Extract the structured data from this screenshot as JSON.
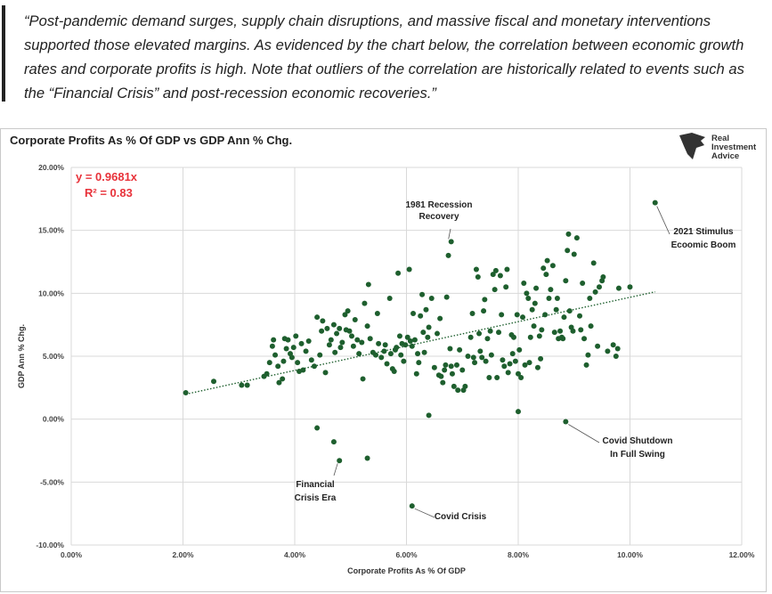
{
  "quote": "“Post-pandemic demand surges, supply chain disruptions, and massive fiscal and monetary interventions supported those elevated margins. As evidenced by the chart below, the correlation between economic growth rates and corporate profits is high. Note that outliers of the correlation are historically related to events such as the “Financial Crisis” and post-recession economic recoveries.”",
  "logo": {
    "line1": "Real",
    "line2": "Investment",
    "line3": "Advice",
    "icon": "bull-head-icon"
  },
  "colors": {
    "points": "#1e5f2e",
    "trendline": "#1e5f2e",
    "equation": "#e8323a",
    "grid": "#d9d9d9"
  },
  "chart_data": {
    "type": "scatter",
    "title": "Corporate Profits As % Of GDP vs GDP Ann % Chg.",
    "xlabel": "Corporate Profits As % Of GDP",
    "ylabel": "GDP Ann % Chg.",
    "xlim": [
      0,
      12
    ],
    "ylim": [
      -10,
      20
    ],
    "xticks": [
      "0.00%",
      "2.00%",
      "4.00%",
      "6.00%",
      "8.00%",
      "10.00%",
      "12.00%"
    ],
    "yticks": [
      "-10.00%",
      "-5.00%",
      "0.00%",
      "5.00%",
      "10.00%",
      "15.00%",
      "20.00%"
    ],
    "grid": true,
    "trendline": {
      "slope": 0.9681,
      "intercept": 0,
      "equation": "y = 0.9681x",
      "r2": "R² = 0.83"
    },
    "annotations": [
      {
        "text": [
          "1981 Recession",
          "Recovery"
        ],
        "point": [
          6.8,
          14.1
        ]
      },
      {
        "text": [
          "2021 Stimulus",
          "Ecoomic Boom"
        ],
        "point": [
          10.45,
          17.2
        ]
      },
      {
        "text": [
          "Covid Shutdown",
          "In Full Swing"
        ],
        "point": [
          8.85,
          -0.2
        ]
      },
      {
        "text": [
          "Financial",
          "Crisis Era"
        ],
        "point": [
          4.8,
          -3.3
        ]
      },
      {
        "text": [
          "Covid Crisis"
        ],
        "point": [
          6.1,
          -6.9
        ]
      }
    ],
    "points": [
      [
        2.05,
        2.1
      ],
      [
        2.55,
        3.0
      ],
      [
        3.05,
        2.7
      ],
      [
        3.15,
        2.7
      ],
      [
        3.45,
        3.4
      ],
      [
        3.5,
        3.6
      ],
      [
        3.55,
        4.5
      ],
      [
        3.6,
        5.8
      ],
      [
        3.62,
        6.3
      ],
      [
        3.65,
        5.1
      ],
      [
        3.7,
        4.2
      ],
      [
        3.72,
        2.9
      ],
      [
        3.78,
        3.2
      ],
      [
        3.8,
        4.6
      ],
      [
        3.82,
        6.4
      ],
      [
        3.85,
        5.6
      ],
      [
        3.88,
        6.3
      ],
      [
        3.92,
        5.2
      ],
      [
        3.95,
        4.9
      ],
      [
        3.98,
        5.7
      ],
      [
        4.02,
        6.6
      ],
      [
        4.05,
        4.5
      ],
      [
        4.08,
        3.8
      ],
      [
        4.12,
        6.0
      ],
      [
        4.15,
        3.9
      ],
      [
        4.2,
        5.4
      ],
      [
        4.25,
        6.2
      ],
      [
        4.3,
        4.7
      ],
      [
        4.35,
        4.2
      ],
      [
        4.4,
        8.1
      ],
      [
        4.45,
        5.1
      ],
      [
        4.48,
        7.0
      ],
      [
        4.5,
        7.8
      ],
      [
        4.55,
        3.7
      ],
      [
        4.58,
        7.2
      ],
      [
        4.62,
        5.9
      ],
      [
        4.65,
        6.3
      ],
      [
        4.7,
        7.5
      ],
      [
        4.72,
        5.3
      ],
      [
        4.75,
        6.8
      ],
      [
        4.8,
        7.2
      ],
      [
        4.82,
        5.7
      ],
      [
        4.85,
        6.1
      ],
      [
        4.9,
        8.3
      ],
      [
        4.92,
        7.1
      ],
      [
        4.95,
        8.6
      ],
      [
        4.98,
        7.0
      ],
      [
        5.02,
        6.6
      ],
      [
        5.05,
        5.8
      ],
      [
        5.08,
        7.9
      ],
      [
        5.12,
        6.3
      ],
      [
        5.15,
        5.2
      ],
      [
        5.2,
        6.1
      ],
      [
        5.22,
        3.2
      ],
      [
        5.25,
        9.2
      ],
      [
        5.3,
        7.4
      ],
      [
        5.32,
        10.7
      ],
      [
        5.35,
        6.4
      ],
      [
        5.4,
        5.3
      ],
      [
        5.45,
        5.1
      ],
      [
        5.48,
        8.4
      ],
      [
        5.5,
        6.0
      ],
      [
        5.55,
        4.9
      ],
      [
        5.6,
        5.4
      ],
      [
        5.62,
        5.9
      ],
      [
        5.65,
        4.4
      ],
      [
        5.7,
        9.6
      ],
      [
        5.72,
        5.2
      ],
      [
        5.75,
        4.0
      ],
      [
        5.78,
        3.8
      ],
      [
        5.8,
        5.5
      ],
      [
        5.82,
        5.7
      ],
      [
        5.85,
        11.6
      ],
      [
        5.88,
        6.6
      ],
      [
        5.9,
        5.1
      ],
      [
        5.92,
        6.0
      ],
      [
        5.95,
        4.6
      ],
      [
        5.98,
        5.9
      ],
      [
        6.02,
        6.5
      ],
      [
        6.05,
        11.9
      ],
      [
        6.07,
        6.2
      ],
      [
        6.1,
        5.8
      ],
      [
        6.12,
        8.4
      ],
      [
        6.15,
        6.3
      ],
      [
        6.18,
        3.6
      ],
      [
        6.2,
        5.2
      ],
      [
        6.22,
        4.5
      ],
      [
        6.25,
        8.2
      ],
      [
        6.28,
        9.9
      ],
      [
        6.3,
        6.9
      ],
      [
        6.32,
        5.3
      ],
      [
        6.35,
        8.7
      ],
      [
        6.38,
        6.5
      ],
      [
        6.4,
        7.3
      ],
      [
        6.45,
        9.6
      ],
      [
        6.5,
        4.1
      ],
      [
        6.55,
        6.8
      ],
      [
        6.58,
        3.5
      ],
      [
        6.6,
        8.0
      ],
      [
        6.62,
        3.4
      ],
      [
        6.65,
        2.9
      ],
      [
        6.68,
        3.9
      ],
      [
        6.7,
        4.3
      ],
      [
        6.72,
        9.7
      ],
      [
        6.75,
        13.0
      ],
      [
        6.78,
        5.6
      ],
      [
        6.8,
        4.2
      ],
      [
        6.82,
        3.6
      ],
      [
        6.85,
        2.6
      ],
      [
        6.9,
        4.3
      ],
      [
        6.92,
        2.3
      ],
      [
        6.95,
        5.5
      ],
      [
        7.0,
        3.9
      ],
      [
        7.02,
        2.3
      ],
      [
        7.05,
        2.6
      ],
      [
        7.1,
        5.0
      ],
      [
        7.15,
        6.5
      ],
      [
        7.18,
        8.4
      ],
      [
        7.2,
        4.9
      ],
      [
        7.22,
        4.5
      ],
      [
        7.25,
        11.9
      ],
      [
        7.28,
        11.3
      ],
      [
        7.3,
        6.8
      ],
      [
        7.32,
        5.4
      ],
      [
        7.35,
        4.9
      ],
      [
        7.38,
        8.6
      ],
      [
        7.4,
        9.5
      ],
      [
        7.42,
        4.6
      ],
      [
        7.45,
        6.4
      ],
      [
        7.48,
        3.3
      ],
      [
        7.5,
        7.0
      ],
      [
        7.52,
        5.1
      ],
      [
        7.55,
        11.5
      ],
      [
        7.58,
        10.3
      ],
      [
        7.6,
        11.8
      ],
      [
        7.62,
        3.3
      ],
      [
        7.65,
        6.9
      ],
      [
        7.68,
        11.4
      ],
      [
        7.7,
        8.3
      ],
      [
        7.72,
        4.7
      ],
      [
        7.75,
        4.2
      ],
      [
        7.78,
        10.5
      ],
      [
        7.8,
        11.9
      ],
      [
        7.82,
        3.7
      ],
      [
        7.85,
        4.4
      ],
      [
        7.88,
        6.7
      ],
      [
        7.9,
        5.2
      ],
      [
        7.92,
        6.5
      ],
      [
        7.95,
        4.6
      ],
      [
        7.98,
        8.3
      ],
      [
        8.0,
        3.6
      ],
      [
        8.02,
        5.5
      ],
      [
        8.05,
        3.3
      ],
      [
        8.08,
        8.1
      ],
      [
        8.1,
        10.8
      ],
      [
        8.12,
        4.3
      ],
      [
        8.15,
        10.0
      ],
      [
        8.18,
        9.6
      ],
      [
        8.2,
        4.5
      ],
      [
        8.22,
        6.5
      ],
      [
        8.25,
        8.7
      ],
      [
        8.28,
        7.4
      ],
      [
        8.3,
        9.2
      ],
      [
        8.32,
        10.4
      ],
      [
        8.35,
        4.1
      ],
      [
        8.38,
        6.6
      ],
      [
        8.4,
        4.8
      ],
      [
        8.42,
        7.1
      ],
      [
        8.45,
        12.0
      ],
      [
        8.48,
        8.3
      ],
      [
        8.5,
        11.5
      ],
      [
        8.52,
        12.6
      ],
      [
        8.55,
        9.6
      ],
      [
        8.58,
        10.3
      ],
      [
        8.62,
        12.2
      ],
      [
        8.65,
        6.9
      ],
      [
        8.68,
        8.7
      ],
      [
        8.7,
        9.6
      ],
      [
        8.72,
        6.4
      ],
      [
        8.75,
        7.0
      ],
      [
        8.78,
        6.5
      ],
      [
        8.8,
        6.4
      ],
      [
        8.82,
        8.1
      ],
      [
        8.85,
        11.0
      ],
      [
        8.88,
        13.4
      ],
      [
        8.9,
        14.7
      ],
      [
        8.92,
        8.6
      ],
      [
        8.95,
        7.3
      ],
      [
        8.98,
        7.0
      ],
      [
        9.0,
        13.1
      ],
      [
        9.05,
        14.4
      ],
      [
        9.1,
        8.2
      ],
      [
        9.12,
        7.1
      ],
      [
        9.15,
        10.8
      ],
      [
        9.18,
        6.4
      ],
      [
        9.22,
        4.3
      ],
      [
        9.25,
        5.1
      ],
      [
        9.28,
        9.6
      ],
      [
        9.3,
        7.4
      ],
      [
        9.35,
        12.4
      ],
      [
        9.38,
        10.1
      ],
      [
        9.42,
        5.8
      ],
      [
        9.45,
        10.5
      ],
      [
        9.5,
        11.0
      ],
      [
        9.52,
        11.3
      ],
      [
        9.6,
        5.4
      ],
      [
        9.7,
        5.9
      ],
      [
        9.75,
        5.0
      ],
      [
        9.78,
        5.6
      ],
      [
        9.8,
        10.4
      ],
      [
        10.0,
        10.5
      ],
      [
        10.45,
        17.2
      ],
      [
        6.8,
        14.1
      ],
      [
        4.4,
        -0.7
      ],
      [
        4.7,
        -1.8
      ],
      [
        4.8,
        -3.3
      ],
      [
        5.3,
        -3.1
      ],
      [
        6.1,
        -6.9
      ],
      [
        6.4,
        0.3
      ],
      [
        8.0,
        0.6
      ],
      [
        8.85,
        -0.2
      ]
    ]
  }
}
